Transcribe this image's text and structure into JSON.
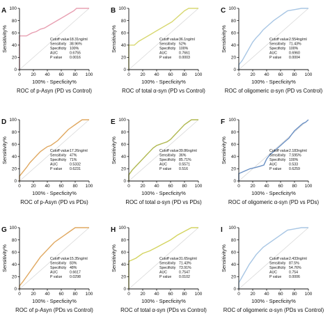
{
  "figure": {
    "background": "#ffffff"
  },
  "chart_data": [
    {
      "panel": "A",
      "type": "line",
      "color": "#e8a0b2",
      "title": "ROC of p-Asyn (PD vs Control)",
      "xlabel": "100% - Specficity%",
      "ylabel": "Sensitivity%",
      "xlim": [
        0,
        100
      ],
      "ylim": [
        0,
        100
      ],
      "diagonal": true,
      "grid": false,
      "x": [
        0,
        0,
        10,
        18,
        24,
        30,
        36,
        42,
        48,
        54,
        60,
        66,
        72,
        78,
        82,
        100
      ],
      "y": [
        0,
        55,
        55,
        60,
        62,
        66,
        68,
        72,
        76,
        80,
        84,
        88,
        92,
        96,
        100,
        100
      ],
      "stats": [
        {
          "label": "Cutoff value",
          "value": "18.31ng/ml"
        },
        {
          "label": "Sensitivity",
          "value": "38.96%"
        },
        {
          "label": "Specificity",
          "value": "100%"
        },
        {
          "label": "AUC",
          "value": "0.6755"
        },
        {
          "label": "P value",
          "value": "0.0016"
        }
      ]
    },
    {
      "panel": "B",
      "type": "line",
      "color": "#d8d872",
      "title": "ROC of total α-syn (PD vs Control)",
      "xlabel": "100% - Specficity%",
      "ylabel": "Sensitivity%",
      "xlim": [
        0,
        100
      ],
      "ylim": [
        0,
        100
      ],
      "diagonal": true,
      "grid": false,
      "x": [
        0,
        0,
        8,
        14,
        20,
        26,
        32,
        38,
        44,
        50,
        56,
        62,
        68,
        74,
        80,
        86,
        100
      ],
      "y": [
        0,
        40,
        40,
        46,
        50,
        54,
        58,
        62,
        66,
        70,
        74,
        78,
        84,
        90,
        96,
        100,
        100
      ],
      "stats": [
        {
          "label": "Cutoff value",
          "value": "36.1ng/ml"
        },
        {
          "label": "Sensitivity",
          "value": "52%"
        },
        {
          "label": "Specificity",
          "value": "100%"
        },
        {
          "label": "AUC",
          "value": "0.7661"
        },
        {
          "label": "P value",
          "value": "0.0003"
        }
      ]
    },
    {
      "panel": "C",
      "type": "line",
      "color": "#a8c6e4",
      "title": "ROC of oligomeric α-syn (PD vs Control)",
      "xlabel": "100% - Specficity%",
      "ylabel": "Sensitivity%",
      "xlim": [
        0,
        100
      ],
      "ylim": [
        0,
        100
      ],
      "diagonal": true,
      "grid": false,
      "x": [
        0,
        0,
        5,
        10,
        15,
        20,
        25,
        30,
        35,
        40,
        45,
        50,
        55,
        60,
        65,
        70,
        80,
        90,
        100
      ],
      "y": [
        0,
        8,
        15,
        25,
        35,
        45,
        52,
        58,
        65,
        70,
        75,
        80,
        84,
        88,
        92,
        96,
        98,
        100,
        100
      ],
      "stats": [
        {
          "label": "Cutoff value",
          "value": "2.554ng/ml"
        },
        {
          "label": "Sensitivity",
          "value": "71.43%"
        },
        {
          "label": "Specificity",
          "value": "100%"
        },
        {
          "label": "AUC",
          "value": "0.6960"
        },
        {
          "label": "P value",
          "value": "0.0004"
        }
      ]
    },
    {
      "panel": "D",
      "type": "line",
      "color": "#e0a860",
      "title": "ROC of p-Asyn (PD vs PDs)",
      "xlabel": "100% - Specficity%",
      "ylabel": "Sensitivity%",
      "xlim": [
        0,
        100
      ],
      "ylim": [
        0,
        100
      ],
      "diagonal": true,
      "grid": false,
      "x": [
        0,
        0,
        5,
        10,
        15,
        20,
        25,
        30,
        35,
        40,
        45,
        50,
        55,
        60,
        65,
        70,
        75,
        80,
        85,
        90,
        100
      ],
      "y": [
        0,
        8,
        15,
        22,
        30,
        36,
        42,
        48,
        52,
        56,
        58,
        62,
        66,
        72,
        78,
        84,
        88,
        92,
        96,
        100,
        100
      ],
      "stats": [
        {
          "label": "Cutoff value",
          "value": "17.26ng/ml"
        },
        {
          "label": "Sensitivity",
          "value": "47%"
        },
        {
          "label": "Specificity",
          "value": "71%"
        },
        {
          "label": "AUC",
          "value": "0.5332"
        },
        {
          "label": "P value",
          "value": "0.6231"
        }
      ]
    },
    {
      "panel": "E",
      "type": "line",
      "color": "#b0b850",
      "title": "ROC of total α-syn (PD vs PDs)",
      "xlabel": "100% - Specficity%",
      "ylabel": "Sensitivity%",
      "xlim": [
        0,
        100
      ],
      "ylim": [
        0,
        100
      ],
      "diagonal": true,
      "grid": false,
      "x": [
        0,
        0,
        5,
        10,
        15,
        20,
        25,
        30,
        35,
        40,
        45,
        50,
        55,
        60,
        65,
        70,
        75,
        80,
        85,
        90,
        100
      ],
      "y": [
        0,
        10,
        18,
        24,
        30,
        36,
        42,
        48,
        54,
        58,
        60,
        62,
        64,
        68,
        74,
        80,
        86,
        92,
        96,
        100,
        100
      ],
      "stats": [
        {
          "label": "Cutoff value",
          "value": "39.86ng/ml"
        },
        {
          "label": "Sensitivity",
          "value": "36%"
        },
        {
          "label": "Specificity",
          "value": "85.71%"
        },
        {
          "label": "AUC",
          "value": "0.5571"
        },
        {
          "label": "P value",
          "value": "0.516"
        }
      ]
    },
    {
      "panel": "F",
      "type": "line",
      "color": "#6a90c4",
      "title": "ROC of oligomeric α-syn (PD vs PDs)",
      "xlabel": "100% - Specficity%",
      "ylabel": "Sensitivity%",
      "xlim": [
        0,
        100
      ],
      "ylim": [
        0,
        100
      ],
      "diagonal": true,
      "grid": false,
      "x": [
        0,
        0,
        8,
        16,
        24,
        30,
        36,
        40,
        44,
        48,
        52,
        56,
        60,
        64,
        68,
        72,
        76,
        80,
        84,
        88,
        92,
        96,
        100
      ],
      "y": [
        0,
        12,
        16,
        20,
        22,
        24,
        26,
        36,
        42,
        46,
        50,
        54,
        58,
        62,
        66,
        70,
        76,
        82,
        86,
        90,
        94,
        96,
        100
      ],
      "stats": [
        {
          "label": "Cutoff value",
          "value": "2.183ng/ml"
        },
        {
          "label": "Sensitivity",
          "value": "7.595%"
        },
        {
          "label": "Specificity",
          "value": "100%"
        },
        {
          "label": "AUC",
          "value": "0.533"
        },
        {
          "label": "P value",
          "value": "0.6259"
        }
      ]
    },
    {
      "panel": "G",
      "type": "line",
      "color": "#e0a860",
      "title": "ROC of p-Asyn (PDs vs Control)",
      "xlabel": "100% - Specficity%",
      "ylabel": "Sensitivity%",
      "xlim": [
        0,
        100
      ],
      "ylim": [
        0,
        100
      ],
      "diagonal": true,
      "grid": false,
      "x": [
        0,
        0,
        5,
        10,
        15,
        20,
        25,
        30,
        35,
        40,
        45,
        50,
        55,
        60,
        65,
        70,
        75,
        80,
        100
      ],
      "y": [
        0,
        5,
        12,
        20,
        28,
        36,
        44,
        52,
        58,
        64,
        70,
        76,
        80,
        84,
        88,
        92,
        96,
        100,
        100
      ],
      "stats": [
        {
          "label": "Cutoff value",
          "value": "15.35ng/ml"
        },
        {
          "label": "Sensitivity",
          "value": "83%"
        },
        {
          "label": "Specificity",
          "value": "48%"
        },
        {
          "label": "AUC",
          "value": "0.6617"
        },
        {
          "label": "P value",
          "value": "0.0298"
        }
      ]
    },
    {
      "panel": "H",
      "type": "line",
      "color": "#d4d460",
      "title": "ROC of total α-syn (PDs vs Control)",
      "xlabel": "100% - Specficity%",
      "ylabel": "Sensitivity%",
      "xlim": [
        0,
        100
      ],
      "ylim": [
        0,
        100
      ],
      "diagonal": true,
      "grid": false,
      "x": [
        0,
        0,
        10,
        20,
        30,
        40,
        50,
        60,
        70,
        80,
        90,
        100
      ],
      "y": [
        0,
        45,
        50,
        58,
        62,
        68,
        74,
        80,
        88,
        94,
        100,
        100
      ],
      "stats": [
        {
          "label": "Cutoff value",
          "value": "31.65ng/ml"
        },
        {
          "label": "Sensitivity",
          "value": "71.43%"
        },
        {
          "label": "Specificity",
          "value": "73.91%"
        },
        {
          "label": "AUC",
          "value": "0.7547"
        },
        {
          "label": "P value",
          "value": "0.0102"
        }
      ]
    },
    {
      "panel": "I",
      "type": "line",
      "color": "#a8c6e4",
      "title": "ROC of oligomeric α-syn (PDs vs Control)",
      "xlabel": "100% - Specficity%",
      "ylabel": "Sensitivity%",
      "xlim": [
        0,
        100
      ],
      "ylim": [
        0,
        100
      ],
      "diagonal": true,
      "grid": false,
      "x": [
        0,
        0,
        5,
        10,
        15,
        20,
        25,
        30,
        35,
        40,
        45,
        50,
        55,
        60,
        65,
        70,
        80,
        90,
        100
      ],
      "y": [
        0,
        10,
        20,
        30,
        40,
        48,
        56,
        62,
        68,
        72,
        76,
        80,
        84,
        88,
        92,
        96,
        98,
        100,
        100
      ],
      "stats": [
        {
          "label": "Cutoff value",
          "value": "2.433ng/ml"
        },
        {
          "label": "Sensitivity",
          "value": "87.5%"
        },
        {
          "label": "Specificity",
          "value": "54.76%"
        },
        {
          "label": "AUC",
          "value": "0.754"
        },
        {
          "label": "P value",
          "value": "0.0006"
        }
      ]
    }
  ]
}
